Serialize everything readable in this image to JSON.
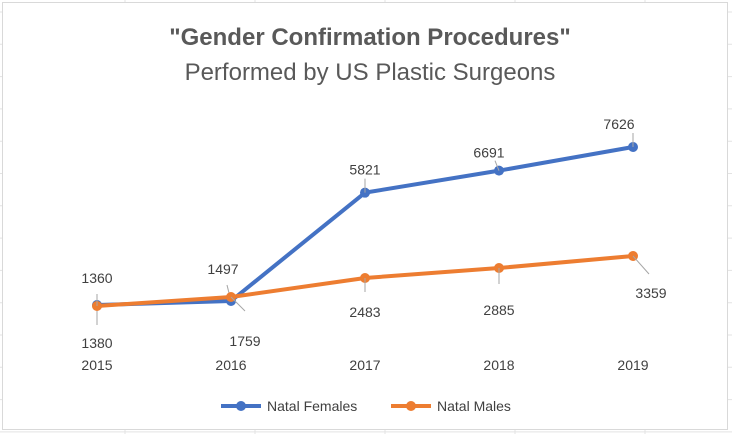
{
  "chart_data": {
    "type": "line",
    "title": "\"Gender Confirmation Procedures\"",
    "subtitle": "Performed by US Plastic Surgeons",
    "categories": [
      "2015",
      "2016",
      "2017",
      "2018",
      "2019"
    ],
    "series": [
      {
        "name": "Natal Females",
        "color": "#4472c4",
        "values": [
          1380,
          1497,
          5821,
          6691,
          7626
        ],
        "labels": [
          "1380",
          "1497",
          "5821",
          "6691",
          "7626"
        ]
      },
      {
        "name": "Natal Males",
        "color": "#ed7d31",
        "values": [
          1360,
          1759,
          2483,
          2885,
          3359
        ],
        "labels": [
          "1360",
          "1759",
          "2483",
          "2885",
          "3359"
        ]
      }
    ],
    "xlabel": "",
    "ylabel": "",
    "ylim": [
      0,
      9000
    ],
    "legend": "bottom",
    "grid": false
  }
}
